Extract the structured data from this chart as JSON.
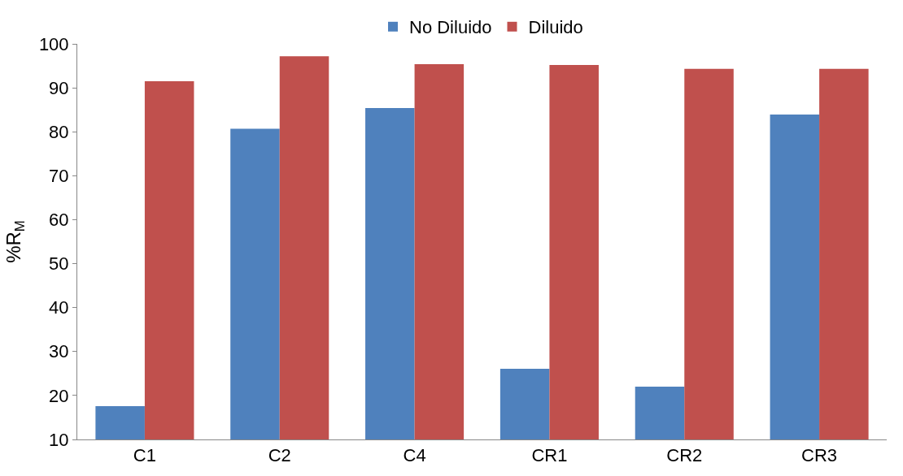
{
  "chart_data": {
    "type": "bar",
    "ylabel": "%R$_{M}$",
    "categories": [
      "C1",
      "C2",
      "C4",
      "CR1",
      "CR2",
      "CR3"
    ],
    "series": [
      {
        "name": "No Diluido",
        "color": "#4f81bd",
        "values": [
          17.6,
          80.7,
          85.4,
          26.1,
          22,
          83.9
        ]
      },
      {
        "name": "Diluido",
        "color": "#c0504d",
        "values": [
          91.5,
          97.2,
          95.4,
          95.2,
          94.3,
          94.3
        ]
      }
    ],
    "ylim": [
      10,
      100
    ],
    "yticks": [
      10,
      20,
      30,
      40,
      50,
      60,
      70,
      80,
      90,
      100
    ],
    "grid": false,
    "legend": "top"
  }
}
